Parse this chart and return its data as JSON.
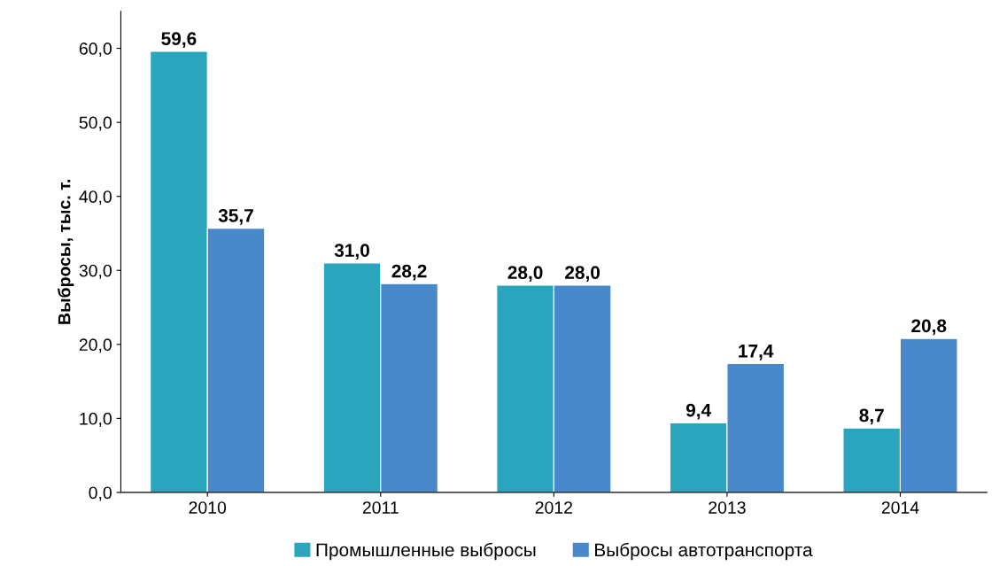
{
  "chart_data": {
    "type": "bar",
    "ylabel": "Выбросы, тыс. т.",
    "categories": [
      "2010",
      "2011",
      "2012",
      "2013",
      "2014"
    ],
    "series": [
      {
        "name": "Промышленные выбросы",
        "color": "#2aa5bd",
        "values": [
          59.6,
          31.0,
          28.0,
          9.4,
          8.7
        ],
        "value_labels": [
          "59,6",
          "31,0",
          "28,0",
          "9,4",
          "8,7"
        ]
      },
      {
        "name": "Выбросы автотранспорта",
        "color": "#4a88cc",
        "values": [
          35.7,
          28.2,
          28.0,
          17.4,
          20.8
        ],
        "value_labels": [
          "35,7",
          "28,2",
          "28,0",
          "17,4",
          "20,8"
        ]
      }
    ],
    "ylim": [
      0,
      65
    ],
    "yticks": [
      {
        "value": 0,
        "label": "0,0"
      },
      {
        "value": 10,
        "label": "10,0"
      },
      {
        "value": 20,
        "label": "20,0"
      },
      {
        "value": 30,
        "label": "30,0"
      },
      {
        "value": 40,
        "label": "40,0"
      },
      {
        "value": 50,
        "label": "50,0"
      },
      {
        "value": 60,
        "label": "60,0"
      }
    ],
    "grid": false,
    "legend": "bottom"
  }
}
